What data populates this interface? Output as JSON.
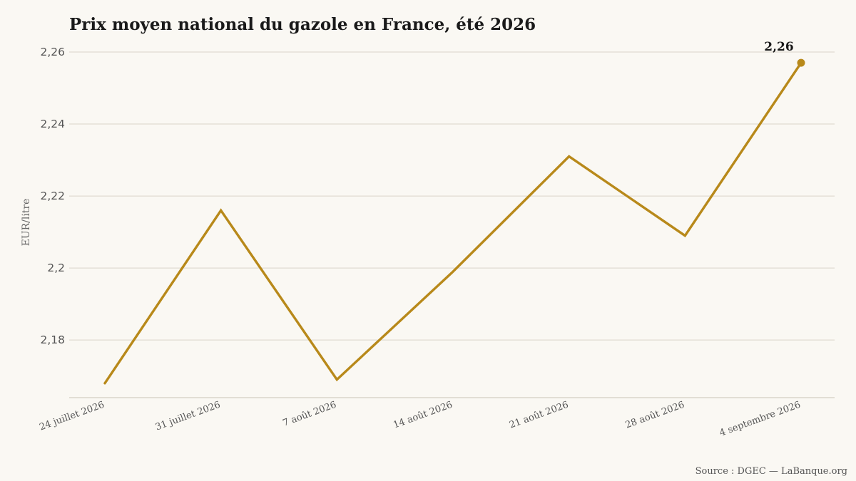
{
  "chart_data": {
    "type": "line",
    "title": "Prix moyen national du gazole en France, été 2026",
    "ylabel": "EUR/litre",
    "xlabel": "",
    "categories": [
      "24 juillet 2026",
      "31 juillet 2026",
      "7 août 2026",
      "14 août 2026",
      "21 août 2026",
      "28 août 2026",
      "4 septembre 2026"
    ],
    "series": [
      {
        "values": [
          2.168,
          2.216,
          2.169,
          2.199,
          2.231,
          2.209,
          2.257
        ],
        "color": "#b8891a"
      }
    ],
    "yticks": [
      2.18,
      2.2,
      2.22,
      2.24,
      2.26
    ],
    "ytick_labels": [
      "2,18",
      "2,2",
      "2,22",
      "2,24",
      "2,26"
    ],
    "ylim": [
      2.164,
      2.26
    ],
    "end_label": "2,26",
    "grid": true,
    "source": "Source : DGEC — LaBanque.org"
  }
}
